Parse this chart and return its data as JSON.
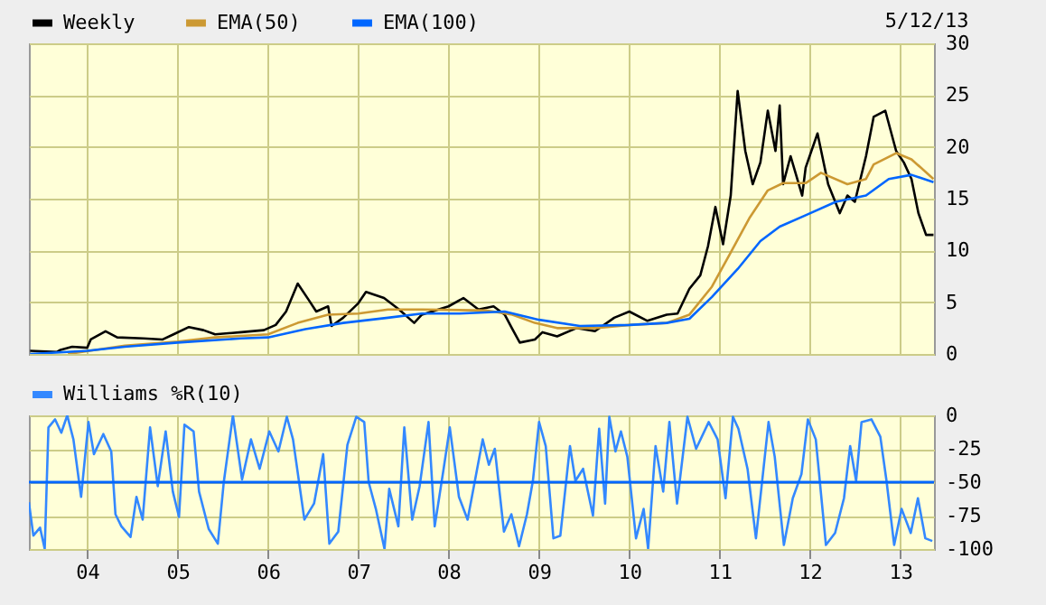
{
  "chart_data": [
    {
      "type": "line",
      "legend": "top left",
      "grid": true,
      "tick_labels": "y",
      "annotations": [
        "5/12/13"
      ],
      "xlim": [
        "2003-05-10",
        "2013-05-17"
      ],
      "xticks": [
        {
          "value": "2004-01-01",
          "label": null
        },
        {
          "value": "2005-01-01",
          "label": null
        },
        {
          "value": "2006-01-01",
          "label": null
        },
        {
          "value": "2007-01-01",
          "label": null
        },
        {
          "value": "2008-01-01",
          "label": null
        },
        {
          "value": "2009-01-01",
          "label": null
        },
        {
          "value": "2010-01-01",
          "label": null
        },
        {
          "value": "2011-01-01",
          "label": null
        },
        {
          "value": "2012-01-01",
          "label": null
        },
        {
          "value": "2013-01-01",
          "label": null
        }
      ],
      "ylim": [
        0,
        30
      ],
      "yticks": [
        0,
        5,
        10,
        15,
        20,
        25,
        30
      ],
      "series": [
        {
          "name": "Weekly",
          "color": "#000000",
          "x": [
            "2003-05-15",
            "2003-09-01",
            "2003-09-15",
            "2003-11-01",
            "2004-01-01",
            "2004-01-15",
            "2004-03-15",
            "2004-05-01",
            "2004-08-15",
            "2004-11-01",
            "2004-12-15",
            "2005-02-15",
            "2005-04-15",
            "2005-06-01",
            "2005-09-15",
            "2005-12-15",
            "2006-02-01",
            "2006-03-15",
            "2006-05-01",
            "2006-06-15",
            "2006-07-15",
            "2006-09-01",
            "2006-09-15",
            "2006-11-01",
            "2007-01-01",
            "2007-02-01",
            "2007-04-15",
            "2007-06-15",
            "2007-08-15",
            "2007-09-15",
            "2008-01-01",
            "2008-03-01",
            "2008-05-01",
            "2008-07-01",
            "2008-08-15",
            "2008-09-15",
            "2008-10-15",
            "2008-12-15",
            "2009-01-15",
            "2009-03-15",
            "2009-06-01",
            "2009-08-15",
            "2009-11-01",
            "2010-01-01",
            "2010-03-15",
            "2010-06-01",
            "2010-07-15",
            "2010-09-01",
            "2010-10-15",
            "2010-11-15",
            "2010-12-15",
            "2011-01-15",
            "2011-02-15",
            "2011-03-15",
            "2011-04-15",
            "2011-05-15",
            "2011-06-15",
            "2011-07-15",
            "2011-08-15",
            "2011-09-01",
            "2011-09-15",
            "2011-10-15",
            "2011-12-01",
            "2011-12-15",
            "2012-02-01",
            "2012-03-15",
            "2012-05-01",
            "2012-06-01",
            "2012-07-01",
            "2012-08-15",
            "2012-09-15",
            "2012-11-01",
            "2012-12-15",
            "2013-01-15",
            "2013-02-15",
            "2013-03-15",
            "2013-04-15",
            "2013-05-15"
          ],
          "values": [
            0.3,
            0.2,
            0.4,
            0.7,
            0.6,
            1.4,
            2.2,
            1.6,
            1.5,
            1.4,
            1.9,
            2.6,
            2.3,
            1.9,
            2.1,
            2.3,
            2.8,
            4.1,
            6.8,
            5.2,
            4.1,
            4.6,
            2.7,
            3.5,
            4.9,
            6.0,
            5.4,
            4.3,
            3.0,
            3.8,
            4.6,
            5.4,
            4.3,
            4.6,
            3.8,
            2.4,
            1.1,
            1.4,
            2.1,
            1.7,
            2.5,
            2.2,
            3.5,
            4.1,
            3.2,
            3.8,
            3.9,
            6.3,
            7.6,
            10.4,
            14.2,
            10.6,
            15.3,
            25.4,
            19.6,
            16.4,
            18.5,
            23.5,
            19.6,
            24.0,
            16.4,
            19.1,
            15.3,
            18.0,
            21.3,
            16.4,
            13.6,
            15.3,
            14.7,
            19.1,
            22.9,
            23.5,
            19.6,
            18.5,
            16.9,
            13.6,
            11.5,
            11.5
          ]
        },
        {
          "name": "EMA(50)",
          "color": "#cc9933",
          "x": [
            "2003-10-15",
            "2004-06-01",
            "2005-01-01",
            "2005-06-01",
            "2006-01-01",
            "2006-05-01",
            "2006-09-01",
            "2007-01-01",
            "2007-05-01",
            "2007-09-15",
            "2008-06-01",
            "2008-09-15",
            "2008-12-15",
            "2009-03-15",
            "2009-08-15",
            "2010-01-01",
            "2010-06-01",
            "2010-09-01",
            "2010-12-01",
            "2011-02-15",
            "2011-05-01",
            "2011-07-15",
            "2011-09-15",
            "2011-12-15",
            "2012-02-15",
            "2012-06-01",
            "2012-08-15",
            "2012-09-15",
            "2012-12-15",
            "2013-02-15",
            "2013-05-15"
          ],
          "values": [
            0,
            0.8,
            1.2,
            1.6,
            1.9,
            3.0,
            3.8,
            3.9,
            4.3,
            4.3,
            4.2,
            3.8,
            3.0,
            2.5,
            2.5,
            2.8,
            3.0,
            3.8,
            6.5,
            9.8,
            13.1,
            15.8,
            16.5,
            16.5,
            17.5,
            16.4,
            16.9,
            18.3,
            19.4,
            18.8,
            16.9
          ]
        },
        {
          "name": "EMA(100)",
          "color": "#0066ff",
          "x": [
            "2003-05-15",
            "2004-01-01",
            "2004-06-01",
            "2005-01-01",
            "2005-09-15",
            "2006-01-01",
            "2006-06-01",
            "2006-11-01",
            "2007-05-01",
            "2007-09-15",
            "2008-02-15",
            "2008-08-15",
            "2009-01-01",
            "2009-06-15",
            "2010-01-01",
            "2010-06-01",
            "2010-09-01",
            "2010-12-01",
            "2011-03-15",
            "2011-06-15",
            "2011-09-01",
            "2011-12-15",
            "2012-04-15",
            "2012-08-15",
            "2012-11-15",
            "2013-02-15",
            "2013-05-15"
          ],
          "values": [
            0,
            0.3,
            0.7,
            1.1,
            1.5,
            1.6,
            2.4,
            3.0,
            3.5,
            3.9,
            3.9,
            4.1,
            3.3,
            2.7,
            2.8,
            3.0,
            3.4,
            5.5,
            8.2,
            10.9,
            12.3,
            13.4,
            14.7,
            15.3,
            16.9,
            17.3,
            16.6
          ]
        }
      ]
    },
    {
      "type": "line",
      "legend": "top left",
      "grid": true,
      "xlim": [
        "2003-05-10",
        "2013-05-17"
      ],
      "xticks": [
        {
          "value": "2004-01-01",
          "label": "04"
        },
        {
          "value": "2005-01-01",
          "label": "05"
        },
        {
          "value": "2006-01-01",
          "label": "06"
        },
        {
          "value": "2007-01-01",
          "label": "07"
        },
        {
          "value": "2008-01-01",
          "label": "08"
        },
        {
          "value": "2009-01-01",
          "label": "09"
        },
        {
          "value": "2010-01-01",
          "label": "10"
        },
        {
          "value": "2011-01-01",
          "label": "11"
        },
        {
          "value": "2012-01-01",
          "label": "12"
        },
        {
          "value": "2013-01-01",
          "label": "13"
        }
      ],
      "ylim": [
        -100,
        0
      ],
      "yticks": [
        -100,
        -75,
        -50,
        -25,
        0
      ],
      "ref_lines": [
        {
          "axis": "y",
          "value": -50,
          "color": "#0066ff"
        }
      ],
      "series": [
        {
          "name": "Williams %R(10)",
          "color": "#3388ff",
          "x": [
            "2003-05-10",
            "2003-05-28",
            "2003-06-24",
            "2003-07-13",
            "2003-07-28",
            "2003-08-24",
            "2003-09-18",
            "2003-10-12",
            "2003-11-06",
            "2003-12-07",
            "2004-01-06",
            "2004-01-28",
            "2004-03-06",
            "2004-04-07",
            "2004-04-24",
            "2004-05-18",
            "2004-06-24",
            "2004-07-18",
            "2004-08-12",
            "2004-09-11",
            "2004-10-12",
            "2004-11-13",
            "2004-12-12",
            "2005-01-06",
            "2005-01-28",
            "2005-03-06",
            "2005-03-28",
            "2005-05-06",
            "2005-06-12",
            "2005-07-06",
            "2005-08-12",
            "2005-09-18",
            "2005-10-24",
            "2005-11-28",
            "2006-01-06",
            "2006-02-12",
            "2006-03-18",
            "2006-04-12",
            "2006-05-28",
            "2006-07-06",
            "2006-08-12",
            "2006-09-06",
            "2006-10-12",
            "2006-11-18",
            "2006-12-24",
            "2007-01-25",
            "2007-02-12",
            "2007-03-13",
            "2007-04-17",
            "2007-05-06",
            "2007-06-12",
            "2007-07-06",
            "2007-08-07",
            "2007-09-06",
            "2007-10-12",
            "2007-11-06",
            "2007-12-12",
            "2008-01-06",
            "2008-02-12",
            "2008-03-18",
            "2008-05-18",
            "2008-06-12",
            "2008-07-06",
            "2008-08-12",
            "2008-09-11",
            "2008-10-12",
            "2008-11-13",
            "2008-12-07",
            "2009-01-01",
            "2009-01-28",
            "2009-02-28",
            "2009-03-28",
            "2009-05-06",
            "2009-05-28",
            "2009-06-28",
            "2009-08-07",
            "2009-09-01",
            "2009-09-25",
            "2009-10-12",
            "2009-11-06",
            "2009-11-28",
            "2009-12-24",
            "2010-01-28",
            "2010-02-28",
            "2010-03-18",
            "2010-04-17",
            "2010-05-18",
            "2010-06-12",
            "2010-07-13",
            "2010-08-24",
            "2010-09-28",
            "2010-11-18",
            "2010-12-24",
            "2011-01-25",
            "2011-02-24",
            "2011-03-18",
            "2011-04-24",
            "2011-05-28",
            "2011-07-18",
            "2011-08-12",
            "2011-09-18",
            "2011-10-24",
            "2011-11-28",
            "2011-12-24",
            "2012-01-25",
            "2012-03-06",
            "2012-04-12",
            "2012-05-18",
            "2012-06-12",
            "2012-07-06",
            "2012-07-28",
            "2012-09-06",
            "2012-10-12",
            "2012-11-06",
            "2012-12-07",
            "2013-01-06",
            "2013-02-12",
            "2013-03-13",
            "2013-04-12",
            "2013-05-10"
          ],
          "values": [
            -65,
            -90,
            -84,
            -100,
            -9,
            -3,
            -13,
            0,
            -18,
            -61,
            -5,
            -29,
            -14,
            -27,
            -74,
            -83,
            -91,
            -61,
            -78,
            -9,
            -53,
            -12,
            -57,
            -76,
            -7,
            -12,
            -57,
            -85,
            -96,
            -50,
            0,
            -48,
            -18,
            -40,
            -12,
            -27,
            -1,
            -18,
            -78,
            -66,
            -29,
            -96,
            -87,
            -22,
            -1,
            -5,
            -50,
            -70,
            -100,
            -55,
            -83,
            -9,
            -78,
            -53,
            -5,
            -83,
            -40,
            -9,
            -61,
            -78,
            -18,
            -37,
            -25,
            -87,
            -74,
            -98,
            -74,
            -49,
            -5,
            -23,
            -92,
            -90,
            -23,
            -49,
            -40,
            -75,
            -10,
            -66,
            -1,
            -27,
            -12,
            -31,
            -92,
            -70,
            -100,
            -23,
            -57,
            -5,
            -66,
            -1,
            -25,
            -5,
            -18,
            -62,
            -1,
            -10,
            -40,
            -92,
            -5,
            -31,
            -97,
            -62,
            -44,
            -3,
            -18,
            -97,
            -88,
            -62,
            -23,
            -49,
            -5,
            -3,
            -16,
            -49,
            -97,
            -70,
            -88,
            -62,
            -92,
            -94
          ]
        }
      ]
    }
  ]
}
